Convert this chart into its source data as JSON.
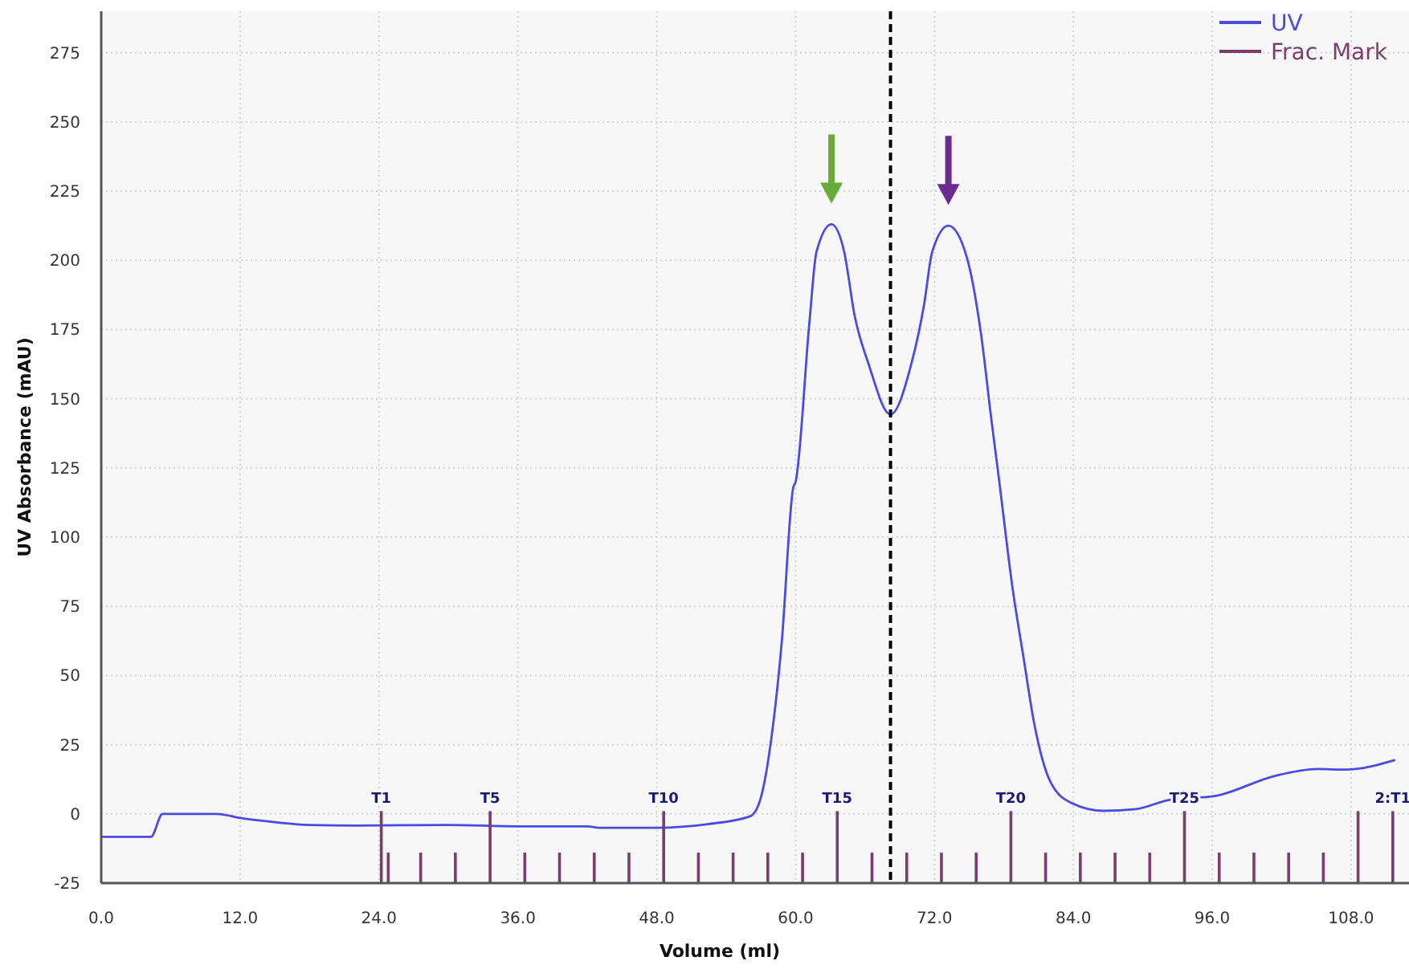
{
  "chart_data": {
    "type": "line",
    "xlabel": "Volume (ml)",
    "ylabel": "UV Absorbance (mAU)",
    "xlim": [
      0,
      113
    ],
    "ylim": [
      -25,
      290
    ],
    "xticks": [
      {
        "value": 0,
        "label": "0.0"
      },
      {
        "value": 12,
        "label": "12.0"
      },
      {
        "value": 24,
        "label": "24.0"
      },
      {
        "value": 36,
        "label": "36.0"
      },
      {
        "value": 48,
        "label": "48.0"
      },
      {
        "value": 60,
        "label": "60.0"
      },
      {
        "value": 72,
        "label": "72.0"
      },
      {
        "value": 84,
        "label": "84.0"
      },
      {
        "value": 96,
        "label": "96.0"
      },
      {
        "value": 108,
        "label": "108.0"
      }
    ],
    "yticks": [
      -25,
      0,
      25,
      50,
      75,
      100,
      125,
      150,
      175,
      200,
      225,
      250,
      275
    ],
    "grid": true,
    "legend": "top right",
    "line_style": "solid",
    "marker": "none",
    "series": [
      {
        "name": "UV",
        "color": "#4b4be0",
        "x": [
          0,
          4.3,
          5.3,
          10,
          12,
          15,
          18,
          22,
          30,
          36,
          42,
          43,
          48,
          52.4,
          56.1,
          57,
          57.9,
          58.8,
          59.8,
          60,
          61.2,
          61.8,
          63.1,
          64.2,
          65.1,
          66.3,
          68.2,
          70,
          71.1,
          71.8,
          73.2,
          74.8,
          76,
          76.9,
          77.6,
          78.75,
          79.7,
          80.6,
          82,
          83.8,
          86.6,
          89.4,
          92.2,
          96.3,
          101.4,
          105.1,
          107.5,
          111.8
        ],
        "values": [
          -8.3,
          -8.3,
          0,
          0,
          -1.5,
          -3,
          -4,
          -4.2,
          -4,
          -4.5,
          -4.5,
          -5,
          -5,
          -3.7,
          -0.8,
          5.9,
          27.2,
          62,
          118,
          120,
          178,
          203,
          213,
          203,
          180,
          162.6,
          144.3,
          162.6,
          184,
          203,
          212.5,
          201,
          174,
          143,
          120,
          81.4,
          56.3,
          33,
          11.7,
          4,
          1.1,
          1.7,
          5,
          6.5,
          13.7,
          16.2,
          16,
          19.5
        ]
      },
      {
        "name": "Frac. Mark",
        "type": "bar",
        "color": "#7a3d6e",
        "x": [
          24.2,
          24.8,
          27.6,
          30.6,
          33.6,
          36.6,
          39.6,
          42.6,
          45.6,
          48.6,
          51.6,
          54.6,
          57.6,
          60.6,
          63.6,
          66.6,
          69.6,
          72.6,
          75.6,
          78.6,
          81.6,
          84.6,
          87.6,
          90.6,
          93.6,
          96.6,
          99.6,
          102.6,
          105.6,
          108.6,
          111.6
        ],
        "values": [
          26,
          11,
          11,
          11,
          26,
          11,
          11,
          11,
          11,
          26,
          11,
          11,
          11,
          11,
          26,
          11,
          11,
          11,
          11,
          26,
          11,
          11,
          11,
          11,
          26,
          11,
          11,
          11,
          11,
          26,
          26
        ],
        "base": [
          -25,
          -25,
          -25,
          -25,
          -25,
          -25,
          -25,
          -25,
          -25,
          -25,
          -25,
          -25,
          -25,
          -25,
          -25,
          -25,
          -25,
          -25,
          -25,
          -25,
          -25,
          -25,
          -25,
          -25,
          -25,
          -25,
          -25,
          -25,
          -25,
          -25,
          -25
        ]
      }
    ],
    "ref_lines": [
      {
        "axis": "x",
        "value": 68.2,
        "color": "#000000",
        "line_style": "dashed"
      }
    ],
    "annotations": [
      {
        "text": "T1",
        "x": 24.2,
        "y": 1
      },
      {
        "text": "T5",
        "x": 33.6,
        "y": 1
      },
      {
        "text": "T10",
        "x": 48.6,
        "y": 1
      },
      {
        "text": "T15",
        "x": 63.6,
        "y": 1
      },
      {
        "text": "T20",
        "x": 78.6,
        "y": 1
      },
      {
        "text": "T25",
        "x": 93.6,
        "y": 1
      },
      {
        "text": "2:T1",
        "x": 111.6,
        "y": 1
      }
    ]
  }
}
